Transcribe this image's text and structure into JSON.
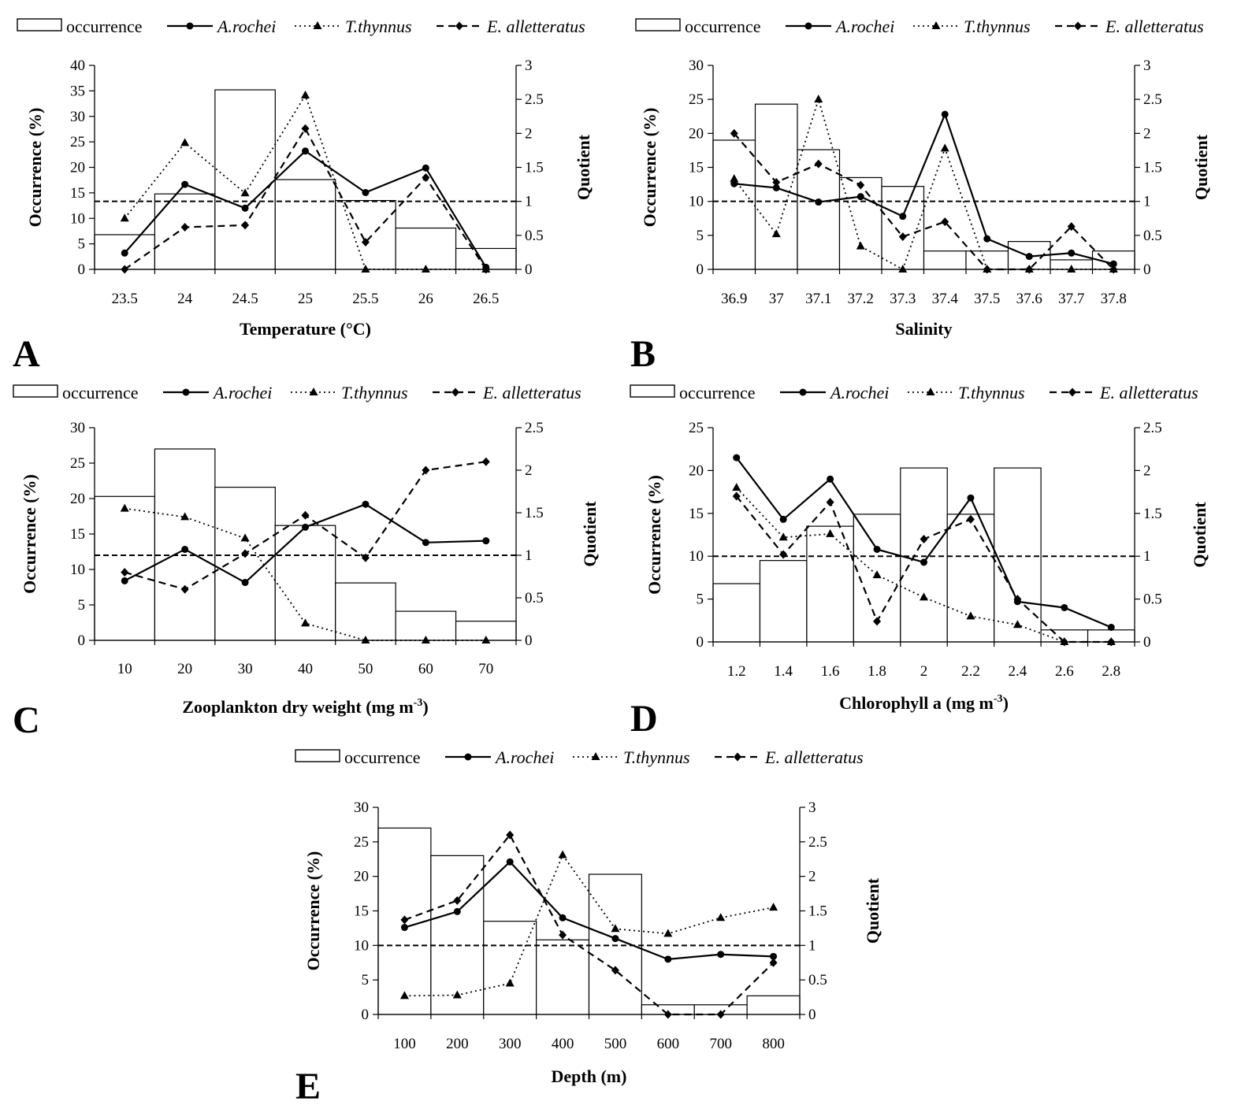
{
  "legend": {
    "occurrence": "occurrence",
    "arochei": "A.rochei",
    "tthynnus": "T.thynnus",
    "ealletteratus": "E. alletteratus"
  },
  "colors": {
    "line": "#000000",
    "bar_fill": "#ffffff",
    "background": "#ffffff"
  },
  "chart_data": [
    {
      "panel": "A",
      "type": "bar+line",
      "categories": [
        "23.5",
        "24",
        "24.5",
        "25",
        "25.5",
        "26",
        "26.5"
      ],
      "xlabel": "Temperature (°C)",
      "ylabel": "Occurrence (%)",
      "y2label": "Quotient",
      "ylim": [
        0,
        40
      ],
      "yticks": [
        0,
        5,
        10,
        15,
        20,
        25,
        30,
        35,
        40
      ],
      "y2lim": [
        0,
        3
      ],
      "y2ticks": [
        0,
        0.5,
        1,
        1.5,
        2,
        2.5,
        3
      ],
      "reference_quotient": 1,
      "occurrence": [
        6.8,
        14.8,
        35.2,
        17.6,
        13.5,
        8.1,
        4.1
      ],
      "series": [
        {
          "name": "A.rochei",
          "values": [
            0.24,
            1.25,
            0.9,
            1.74,
            1.13,
            1.49,
            0.03
          ]
        },
        {
          "name": "T.thynnus",
          "values": [
            0.75,
            1.86,
            1.12,
            2.56,
            0,
            0,
            0
          ]
        },
        {
          "name": "E. alletteratus",
          "values": [
            0,
            0.62,
            0.65,
            2.07,
            0.4,
            1.35,
            0
          ]
        }
      ]
    },
    {
      "panel": "B",
      "type": "bar+line",
      "categories": [
        "36.9",
        "37",
        "37.1",
        "37.2",
        "37.3",
        "37.4",
        "37.5",
        "37.6",
        "37.7",
        "37.8"
      ],
      "xlabel": "Salinity",
      "ylabel": "Occurrence (%)",
      "y2label": "Quotient",
      "ylim": [
        0,
        30
      ],
      "yticks": [
        0,
        5,
        10,
        15,
        20,
        25,
        30
      ],
      "y2lim": [
        0,
        3
      ],
      "y2ticks": [
        0,
        0.5,
        1,
        1.5,
        2,
        2.5,
        3
      ],
      "reference_quotient": 1,
      "occurrence": [
        19,
        24.3,
        17.6,
        13.5,
        12.2,
        2.7,
        2.7,
        4.1,
        1.4,
        2.7
      ],
      "series": [
        {
          "name": "A.rochei",
          "values": [
            1.26,
            1.2,
            0.99,
            1.07,
            0.78,
            2.28,
            0.45,
            0.19,
            0.24,
            0.08
          ]
        },
        {
          "name": "T.thynnus",
          "values": [
            1.33,
            0.52,
            2.5,
            0.34,
            0,
            1.78,
            0,
            0,
            0,
            0
          ]
        },
        {
          "name": "E. alletteratus",
          "values": [
            2,
            1.28,
            1.55,
            1.24,
            0.48,
            0.7,
            0,
            0,
            0.63,
            0
          ]
        }
      ]
    },
    {
      "panel": "C",
      "type": "bar+line",
      "categories": [
        "10",
        "20",
        "30",
        "40",
        "50",
        "60",
        "70"
      ],
      "xlabel": "Zooplankton dry weight (mg m",
      "xlabel_sup": "-3",
      "xlabel_end": ")",
      "ylabel": "Occurrence (%)",
      "y2label": "Quotient",
      "ylim": [
        0,
        30
      ],
      "yticks": [
        0,
        5,
        10,
        15,
        20,
        25,
        30
      ],
      "y2lim": [
        0,
        2.5
      ],
      "y2ticks": [
        0,
        0.5,
        1,
        1.5,
        2,
        2.5
      ],
      "reference_quotient": 1,
      "occurrence": [
        20.3,
        27,
        21.6,
        16.2,
        8.1,
        4.1,
        2.7
      ],
      "series": [
        {
          "name": "A.rochei",
          "values": [
            0.7,
            1.07,
            0.68,
            1.33,
            1.6,
            1.15,
            1.17
          ]
        },
        {
          "name": "T.thynnus",
          "values": [
            1.55,
            1.45,
            1.2,
            0.2,
            0,
            0,
            0
          ]
        },
        {
          "name": "E. alletteratus",
          "values": [
            0.8,
            0.6,
            1.02,
            1.47,
            0.97,
            2,
            2.1
          ]
        }
      ]
    },
    {
      "panel": "D",
      "type": "bar+line",
      "categories": [
        "1.2",
        "1.4",
        "1.6",
        "1.8",
        "2",
        "2.2",
        "2.4",
        "2.6",
        "2.8"
      ],
      "xlabel": "Chlorophyll a (mg m",
      "xlabel_sup": "-3",
      "xlabel_end": ")",
      "ylabel": "Occurrence (%)",
      "y2label": "Quotient",
      "ylim": [
        0,
        25
      ],
      "yticks": [
        0,
        5,
        10,
        15,
        20,
        25
      ],
      "y2lim": [
        0,
        2.5
      ],
      "y2ticks": [
        0,
        0.5,
        1,
        1.5,
        2,
        2.5
      ],
      "reference_quotient": 1,
      "occurrence": [
        6.8,
        9.5,
        13.5,
        14.9,
        20.3,
        14.9,
        20.3,
        1.4,
        1.4
      ],
      "series": [
        {
          "name": "A.rochei",
          "values": [
            2.15,
            1.43,
            1.9,
            1.08,
            0.93,
            1.68,
            0.47,
            0.4,
            0.17
          ]
        },
        {
          "name": "T.thynnus",
          "values": [
            1.8,
            1.22,
            1.26,
            0.78,
            0.52,
            0.3,
            0.2,
            0,
            0
          ]
        },
        {
          "name": "E. alletteratus",
          "values": [
            1.7,
            1.02,
            1.63,
            0.24,
            1.2,
            1.43,
            0.5,
            0,
            0
          ]
        }
      ]
    },
    {
      "panel": "E",
      "type": "bar+line",
      "categories": [
        "100",
        "200",
        "300",
        "400",
        "500",
        "600",
        "700",
        "800"
      ],
      "xlabel": "Depth (m)",
      "ylabel": "Occurrence (%)",
      "y2label": "Quotient",
      "ylim": [
        0,
        30
      ],
      "yticks": [
        0,
        5,
        10,
        15,
        20,
        25,
        30
      ],
      "y2lim": [
        0,
        3
      ],
      "y2ticks": [
        0,
        0.5,
        1,
        1.5,
        2,
        2.5,
        3
      ],
      "reference_quotient": 1,
      "occurrence": [
        27,
        23,
        13.5,
        10.8,
        20.3,
        1.4,
        1.4,
        2.7
      ],
      "series": [
        {
          "name": "A.rochei",
          "values": [
            1.26,
            1.49,
            2.21,
            1.4,
            1.1,
            0.8,
            0.87,
            0.84
          ]
        },
        {
          "name": "T.thynnus",
          "values": [
            0.27,
            0.28,
            0.45,
            2.31,
            1.24,
            1.17,
            1.4,
            1.55
          ]
        },
        {
          "name": "E. alletteratus",
          "values": [
            1.37,
            1.65,
            2.6,
            1.15,
            0.64,
            0,
            0,
            0.75
          ]
        }
      ]
    }
  ]
}
